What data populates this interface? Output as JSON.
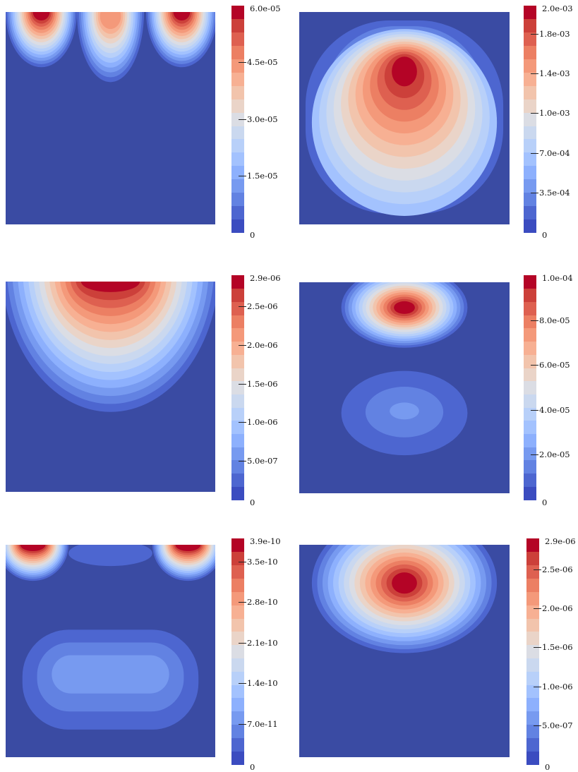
{
  "palette": [
    "#3b4cc0",
    "#4d66d0",
    "#6282e2",
    "#779af0",
    "#8db0fd",
    "#a3c2fe",
    "#b8d0f9",
    "#cad8ef",
    "#dbdde4",
    "#ead4c8",
    "#f2c4ac",
    "#f7b093",
    "#f4997a",
    "#ec7f63",
    "#de6050",
    "#cc403a",
    "#b40426"
  ],
  "panel_bg": "#3a4ba3",
  "chart_data": [
    {
      "type": "heatmap",
      "id": "p1",
      "colorbar": {
        "max": "6.0e-05",
        "labels": [
          "6.0e-05",
          "4.5e-05",
          "3.0e-05",
          "1.5e-05",
          "0"
        ],
        "values": [
          6e-05,
          4.5e-05,
          3e-05,
          1.5e-05,
          0
        ]
      }
    },
    {
      "type": "heatmap",
      "id": "p2",
      "colorbar": {
        "max": "2.0e-03",
        "labels": [
          "2.0e-03",
          "1.8e-03",
          "1.4e-03",
          "1.0e-03",
          "7.0e-04",
          "3.5e-04",
          "0"
        ],
        "values": [
          0.002,
          0.00175,
          0.0014,
          0.00105,
          0.0007,
          0.00035,
          0
        ]
      }
    },
    {
      "type": "heatmap",
      "id": "p3",
      "colorbar": {
        "max": "2.9e-06",
        "labels": [
          "2.9e-06",
          "2.5e-06",
          "2.0e-06",
          "1.5e-06",
          "1.0e-06",
          "5.0e-07",
          "0"
        ],
        "values": [
          2.9e-06,
          2.5e-06,
          2e-06,
          1.5e-06,
          1e-06,
          5e-07,
          0
        ]
      }
    },
    {
      "type": "heatmap",
      "id": "p4",
      "colorbar": {
        "max": "1.0e-04",
        "labels": [
          "1.0e-04",
          "8.0e-05",
          "6.0e-05",
          "4.0e-05",
          "2.0e-05",
          "0"
        ],
        "values": [
          0.0001,
          8e-05,
          6e-05,
          4e-05,
          2e-05,
          0
        ]
      }
    },
    {
      "type": "heatmap",
      "id": "p5",
      "colorbar": {
        "max": "3.9e-10",
        "labels": [
          "3.9e-10",
          "3.5e-10",
          "2.8e-10",
          "2.1e-10",
          "1.4e-10",
          "7.0e-11",
          "0"
        ],
        "values": [
          3.9e-10,
          3.5e-10,
          2.8e-10,
          2.1e-10,
          1.4e-10,
          7e-11,
          0
        ]
      }
    },
    {
      "type": "heatmap",
      "id": "p6",
      "colorbar": {
        "max": "2.9e-06",
        "labels": [
          "2.9e-06",
          "2.5e-06",
          "2.0e-06",
          "1.5e-06",
          "1.0e-06",
          "5.0e-07",
          "0"
        ],
        "values": [
          2.9e-06,
          2.5e-06,
          2e-06,
          1.5e-06,
          1e-06,
          5e-07,
          0
        ]
      }
    }
  ]
}
